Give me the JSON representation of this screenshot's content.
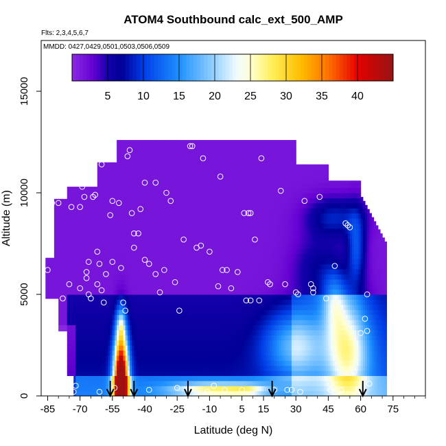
{
  "chart_data": {
    "type": "heatmap",
    "title": "ATOM4 Southbound calc_ext_500_AMP",
    "flights_label": "Flts: 2,3,4,5,6,7",
    "dates_label": "MMDD: 0427,0429,0501,0503,0506,0509",
    "xlabel": "Latitude (deg N)",
    "ylabel": "Altitude (m)",
    "xlim": [
      -88,
      90
    ],
    "ylim": [
      0,
      17500
    ],
    "x_ticks": [
      -85,
      -70,
      -55,
      -40,
      -25,
      -10,
      5,
      15,
      30,
      45,
      60,
      75
    ],
    "x_tick_labels": [
      "-85",
      "-70",
      "-55",
      "-40",
      "-25",
      "-10",
      "5",
      "15",
      "30",
      "45",
      "60",
      "75"
    ],
    "x_minor_ticks": [
      -80,
      -75,
      -65,
      -60,
      -50,
      -45,
      -35,
      -30,
      -20,
      -15,
      -5,
      0,
      10,
      20,
      25,
      35,
      40,
      50,
      55,
      65,
      70,
      80,
      85,
      90
    ],
    "y_ticks": [
      0,
      5000,
      10000,
      15000
    ],
    "y_tick_labels": [
      "0",
      "5000",
      "10000",
      "15000"
    ],
    "colorbar": {
      "range": [
        0,
        45
      ],
      "ticks": [
        5,
        10,
        15,
        20,
        25,
        30,
        35,
        40
      ],
      "tick_labels": [
        "5",
        "10",
        "15",
        "20",
        "25",
        "30",
        "35",
        "40"
      ]
    },
    "flight_arrows_lat": [
      -56,
      -45,
      -20,
      19,
      61
    ],
    "samples": [
      [
        -85,
        6200
      ],
      [
        -83,
        9500
      ],
      [
        -80,
        9500
      ],
      [
        -78,
        4800
      ],
      [
        -75,
        5500
      ],
      [
        -74,
        9300
      ],
      [
        -73,
        200
      ],
      [
        -72,
        500
      ],
      [
        -70,
        5300
      ],
      [
        -70,
        9300
      ],
      [
        -69,
        10300
      ],
      [
        -68,
        9800
      ],
      [
        -67,
        6100
      ],
      [
        -67,
        5800
      ],
      [
        -66,
        6600
      ],
      [
        -66,
        5000
      ],
      [
        -65,
        4800
      ],
      [
        -64,
        9800
      ],
      [
        -63,
        9900
      ],
      [
        -62,
        7100
      ],
      [
        -62,
        5500
      ],
      [
        -61,
        6500
      ],
      [
        -61,
        200
      ],
      [
        -60,
        11400
      ],
      [
        -60,
        5200
      ],
      [
        -59,
        4600
      ],
      [
        -58,
        6000
      ],
      [
        -57,
        12100
      ],
      [
        -56,
        8900
      ],
      [
        -55,
        6600
      ],
      [
        -55,
        9600
      ],
      [
        -54,
        400
      ],
      [
        -52,
        9500
      ],
      [
        -51,
        6300
      ],
      [
        -50,
        4600
      ],
      [
        -49,
        4200
      ],
      [
        -48,
        11800
      ],
      [
        -47,
        12100
      ],
      [
        -46,
        9000
      ],
      [
        -45,
        7300
      ],
      [
        -45,
        8000
      ],
      [
        -43,
        8000
      ],
      [
        -42,
        9200
      ],
      [
        -40,
        6700
      ],
      [
        -40,
        10500
      ],
      [
        -38,
        6500
      ],
      [
        -38,
        300
      ],
      [
        -35,
        10500
      ],
      [
        -35,
        6000
      ],
      [
        -33,
        5100
      ],
      [
        -31,
        6200
      ],
      [
        -30,
        10000
      ],
      [
        -28,
        9600
      ],
      [
        -26,
        5600
      ],
      [
        -25,
        400
      ],
      [
        -24,
        4200
      ],
      [
        -22,
        7700
      ],
      [
        -19,
        12300
      ],
      [
        -18,
        12300
      ],
      [
        -16,
        7300
      ],
      [
        -14,
        7400
      ],
      [
        -13,
        11700
      ],
      [
        -11,
        200
      ],
      [
        -10,
        7100
      ],
      [
        -8,
        500
      ],
      [
        -6,
        5400
      ],
      [
        -5,
        10800
      ],
      [
        -4,
        6200
      ],
      [
        -3,
        300
      ],
      [
        -2,
        6200
      ],
      [
        0,
        5300
      ],
      [
        3,
        6100
      ],
      [
        5,
        300
      ],
      [
        6,
        9000
      ],
      [
        7,
        4700
      ],
      [
        8,
        9000
      ],
      [
        9,
        4700
      ],
      [
        9,
        9000
      ],
      [
        11,
        7700
      ],
      [
        13,
        4700
      ],
      [
        14,
        11700
      ],
      [
        17,
        5600
      ],
      [
        18,
        5500
      ],
      [
        20,
        300
      ],
      [
        23,
        10100
      ],
      [
        25,
        5500
      ],
      [
        26,
        300
      ],
      [
        28,
        300
      ],
      [
        30,
        5100
      ],
      [
        31,
        5000
      ],
      [
        32,
        200
      ],
      [
        34,
        9600
      ],
      [
        37,
        5500
      ],
      [
        38,
        5300
      ],
      [
        38,
        5100
      ],
      [
        41,
        9800
      ],
      [
        44,
        4800
      ],
      [
        46,
        300
      ],
      [
        48,
        6400
      ],
      [
        51,
        300
      ],
      [
        53,
        8500
      ],
      [
        54,
        8400
      ],
      [
        55,
        8300
      ],
      [
        57,
        1200
      ],
      [
        59,
        300
      ],
      [
        60,
        3100
      ],
      [
        61,
        300
      ],
      [
        62,
        3800
      ],
      [
        63,
        3200
      ],
      [
        63,
        5000
      ],
      [
        64,
        600
      ]
    ]
  }
}
